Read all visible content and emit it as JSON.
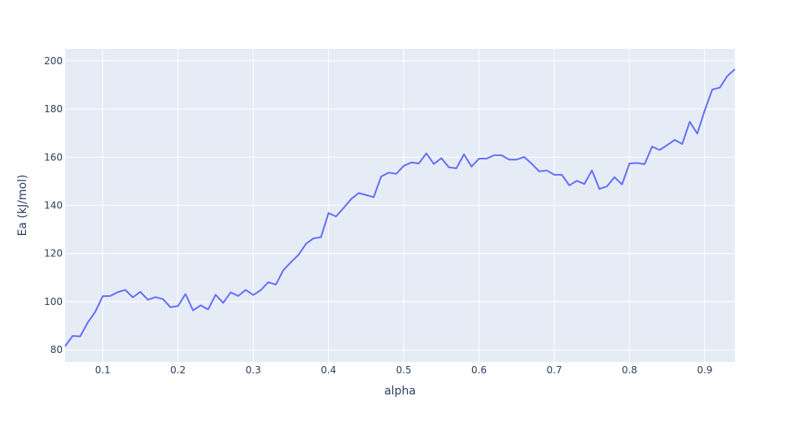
{
  "chart_data": {
    "type": "line",
    "title": "",
    "xlabel": "alpha",
    "ylabel": "Ea (kJ/mol)",
    "xlim": [
      0.05,
      0.94
    ],
    "ylim": [
      75,
      205
    ],
    "grid": true,
    "x_ticks": [
      "0.1",
      "0.2",
      "0.3",
      "0.4",
      "0.5",
      "0.6",
      "0.7",
      "0.8",
      "0.9"
    ],
    "y_ticks": [
      "80",
      "100",
      "120",
      "140",
      "160",
      "180",
      "200"
    ],
    "colors": {
      "line": "#636efa",
      "plot_bg": "#e5ecf6",
      "grid": "#ffffff",
      "text": "#2a3f5f"
    },
    "series": [
      {
        "x": [
          0.05,
          0.06,
          0.07,
          0.08,
          0.09,
          0.1,
          0.11,
          0.12,
          0.13,
          0.14,
          0.15,
          0.16,
          0.17,
          0.18,
          0.19,
          0.2,
          0.21,
          0.22,
          0.23,
          0.24,
          0.25,
          0.26,
          0.27,
          0.28,
          0.29,
          0.3,
          0.31,
          0.32,
          0.33,
          0.34,
          0.35,
          0.36,
          0.37,
          0.38,
          0.39,
          0.4,
          0.41,
          0.42,
          0.43,
          0.44,
          0.45,
          0.46,
          0.47,
          0.48,
          0.49,
          0.5,
          0.51,
          0.52,
          0.53,
          0.54,
          0.55,
          0.56,
          0.57,
          0.58,
          0.59,
          0.6,
          0.61,
          0.62,
          0.63,
          0.64,
          0.65,
          0.66,
          0.67,
          0.68,
          0.69,
          0.7,
          0.71,
          0.72,
          0.73,
          0.74,
          0.75,
          0.76,
          0.77,
          0.78,
          0.79,
          0.8,
          0.81,
          0.82,
          0.83,
          0.84,
          0.85,
          0.86,
          0.87,
          0.88,
          0.89,
          0.9,
          0.91,
          0.92,
          0.93,
          0.94
        ],
        "values": [
          81.5,
          85.8,
          85.6,
          91.3,
          95.8,
          102.3,
          102.4,
          104.0,
          104.9,
          101.8,
          104.1,
          100.8,
          101.9,
          101.1,
          97.7,
          98.2,
          103.2,
          96.4,
          98.5,
          96.8,
          102.9,
          99.5,
          103.9,
          102.4,
          104.9,
          102.8,
          104.8,
          108.1,
          107.1,
          113.1,
          116.4,
          119.4,
          124.0,
          126.3,
          126.8,
          136.8,
          135.4,
          138.9,
          142.6,
          145.1,
          144.3,
          143.4,
          152.0,
          153.6,
          153.1,
          156.4,
          157.8,
          157.4,
          161.6,
          157.2,
          159.6,
          155.8,
          155.4,
          161.2,
          156.1,
          159.4,
          159.4,
          160.8,
          160.8,
          159.0,
          159.0,
          160.1,
          157.3,
          154.1,
          154.5,
          152.7,
          152.7,
          148.3,
          150.2,
          148.9,
          154.5,
          146.8,
          147.9,
          151.7,
          148.7,
          157.4,
          157.6,
          157.1,
          164.4,
          163.0,
          165.0,
          167.2,
          165.5,
          174.7,
          169.8,
          179.5,
          188.1,
          188.9,
          193.7,
          196.5
        ]
      }
    ]
  }
}
